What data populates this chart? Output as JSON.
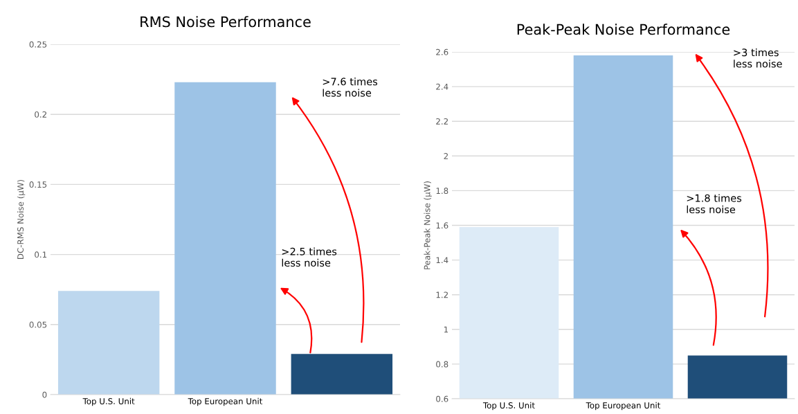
{
  "chart_data": [
    {
      "type": "bar",
      "title": "RMS Noise Performance",
      "ylabel": "DC-RMS Noise (µW)",
      "categories": [
        "Top U.S. Unit",
        "Top European Unit",
        null
      ],
      "values": [
        0.074,
        0.223,
        0.029
      ],
      "colors": [
        "#bdd7ee",
        "#9dc3e6",
        "#1f4e79"
      ],
      "ylim": [
        0,
        0.25
      ],
      "yticks": [
        {
          "value": 0,
          "label": "0"
        },
        0.05,
        {
          "value": 0.1,
          "label": "0.1"
        },
        0.15,
        {
          "value": 0.2,
          "label": "0.2"
        },
        0.25
      ],
      "grid": "y",
      "annotations": [
        ">2.5 times\nless noise",
        ">7.6 times\nless noise"
      ]
    },
    {
      "type": "bar",
      "title": "Peak-Peak Noise Performance",
      "ylabel": "Peak-Peak Noise (µW)",
      "categories": [
        "Top U.S. Unit",
        "Top European Unit",
        null
      ],
      "values": [
        1.59,
        2.58,
        0.85
      ],
      "colors": [
        "#ddebf7",
        "#9dc3e6",
        "#1f4e79"
      ],
      "ylim": [
        0.6,
        2.6
      ],
      "yticks": [
        0.6,
        0.8,
        {
          "value": 1,
          "label": "1"
        },
        1.2,
        1.4,
        1.6,
        1.8,
        {
          "value": 2,
          "label": "2"
        },
        2.2,
        2.4,
        2.6
      ],
      "grid": "y",
      "annotations": [
        ">1.8 times\nless noise",
        ">3 times\nless noise"
      ]
    }
  ]
}
